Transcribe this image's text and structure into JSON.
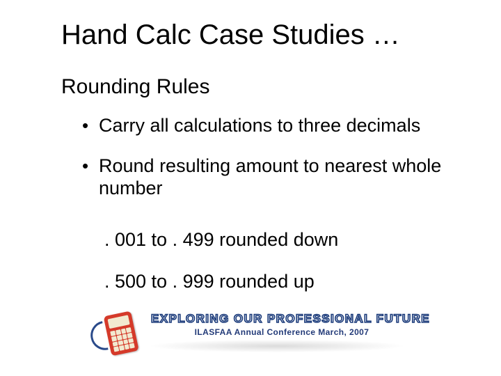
{
  "title": "Hand Calc Case Studies …",
  "subtitle": "Rounding Rules",
  "bullets": [
    "Carry all calculations to three decimals",
    "Round resulting amount to nearest whole number"
  ],
  "sublines": [
    ". 001 to . 499 rounded down",
    ". 500 to . 999 rounded up"
  ],
  "footer": {
    "main": "EXPLORING OUR PROFESSIONAL FUTURE",
    "sub": "ILASFAA Annual Conference March, 2007",
    "stroke_color": "#1a3a7a",
    "text_color": "#223a78",
    "calc_color": "#d53a2a",
    "calc_screen": "#f2ead0"
  },
  "colors": {
    "background": "#ffffff",
    "text": "#000000"
  },
  "font_sizes": {
    "title": 40,
    "subtitle": 30,
    "body": 27,
    "banner_main": 17,
    "banner_sub": 12
  }
}
